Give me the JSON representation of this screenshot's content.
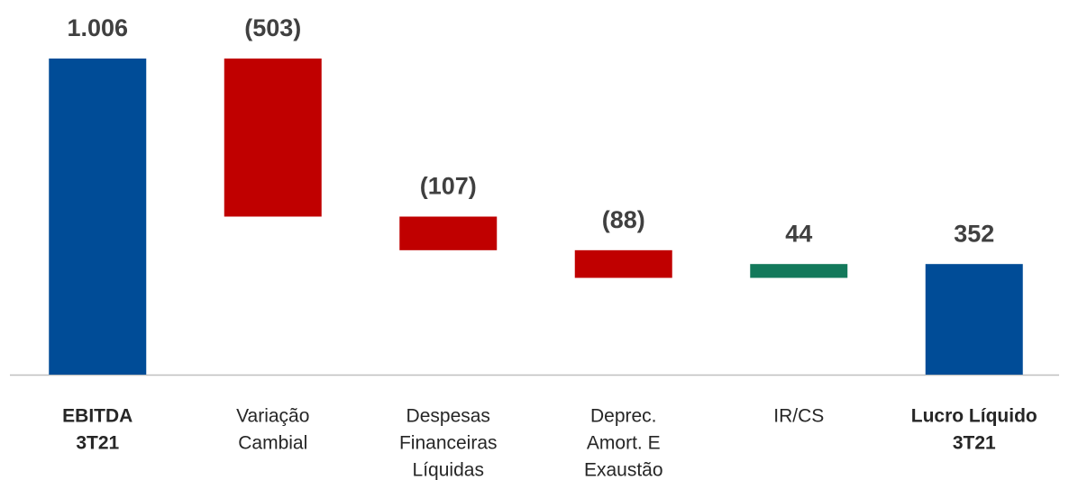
{
  "chart_data": {
    "type": "waterfall",
    "categories": [
      [
        "EBITDA",
        "3T21"
      ],
      [
        "Variação",
        "Cambial"
      ],
      [
        "Despesas",
        "Financeiras",
        "Líquidas"
      ],
      [
        "Deprec.",
        "Amort. E",
        "Exaustão"
      ],
      [
        "IR/CS"
      ],
      [
        "Lucro Líquido",
        "3T21"
      ]
    ],
    "values": [
      1006,
      -503,
      -107,
      -88,
      44,
      352
    ],
    "value_labels": [
      "1.006",
      "(503)",
      "(107)",
      "(88)",
      "44",
      "352"
    ],
    "kinds": [
      "total",
      "delta",
      "delta",
      "delta",
      "delta",
      "total"
    ],
    "colors": {
      "total": "#004c97",
      "negative": "#c00000",
      "positive": "#13795b"
    }
  }
}
